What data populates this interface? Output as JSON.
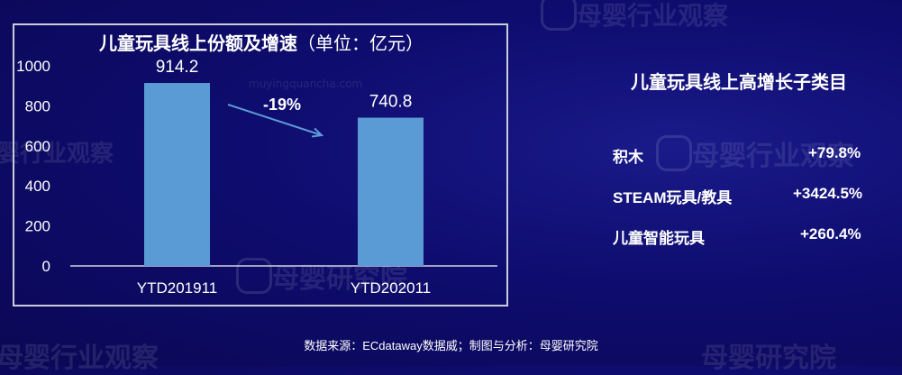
{
  "watermarks": {
    "brand": "母婴行业观察",
    "research": "母婴研究院",
    "site": "muyingquancha.com"
  },
  "chart_data": {
    "type": "bar",
    "title": "儿童玩具线上份额及增速",
    "unit": "（单位：亿元）",
    "categories": [
      "YTD201911",
      "YTD202011"
    ],
    "values": [
      914.2,
      740.8
    ],
    "data_labels": [
      "914.2",
      "740.8"
    ],
    "y_ticks": [
      0,
      200,
      400,
      600,
      800,
      1000
    ],
    "ylim": [
      0,
      1000
    ],
    "annotation": "-19%",
    "bar_color": "#5b9bd5",
    "grid": false,
    "legend": "none"
  },
  "subcategory_panel": {
    "title": "儿童玩具线上高增长子类目",
    "items": [
      {
        "name": "积木",
        "growth": "+79.8%"
      },
      {
        "name": "STEAM玩具/教具",
        "growth": "+3424.5%"
      },
      {
        "name": "儿童智能玩具",
        "growth": "+260.4%"
      }
    ]
  },
  "footer": {
    "source": "数据来源：ECdataway数据威；制图与分析：母婴研究院"
  }
}
